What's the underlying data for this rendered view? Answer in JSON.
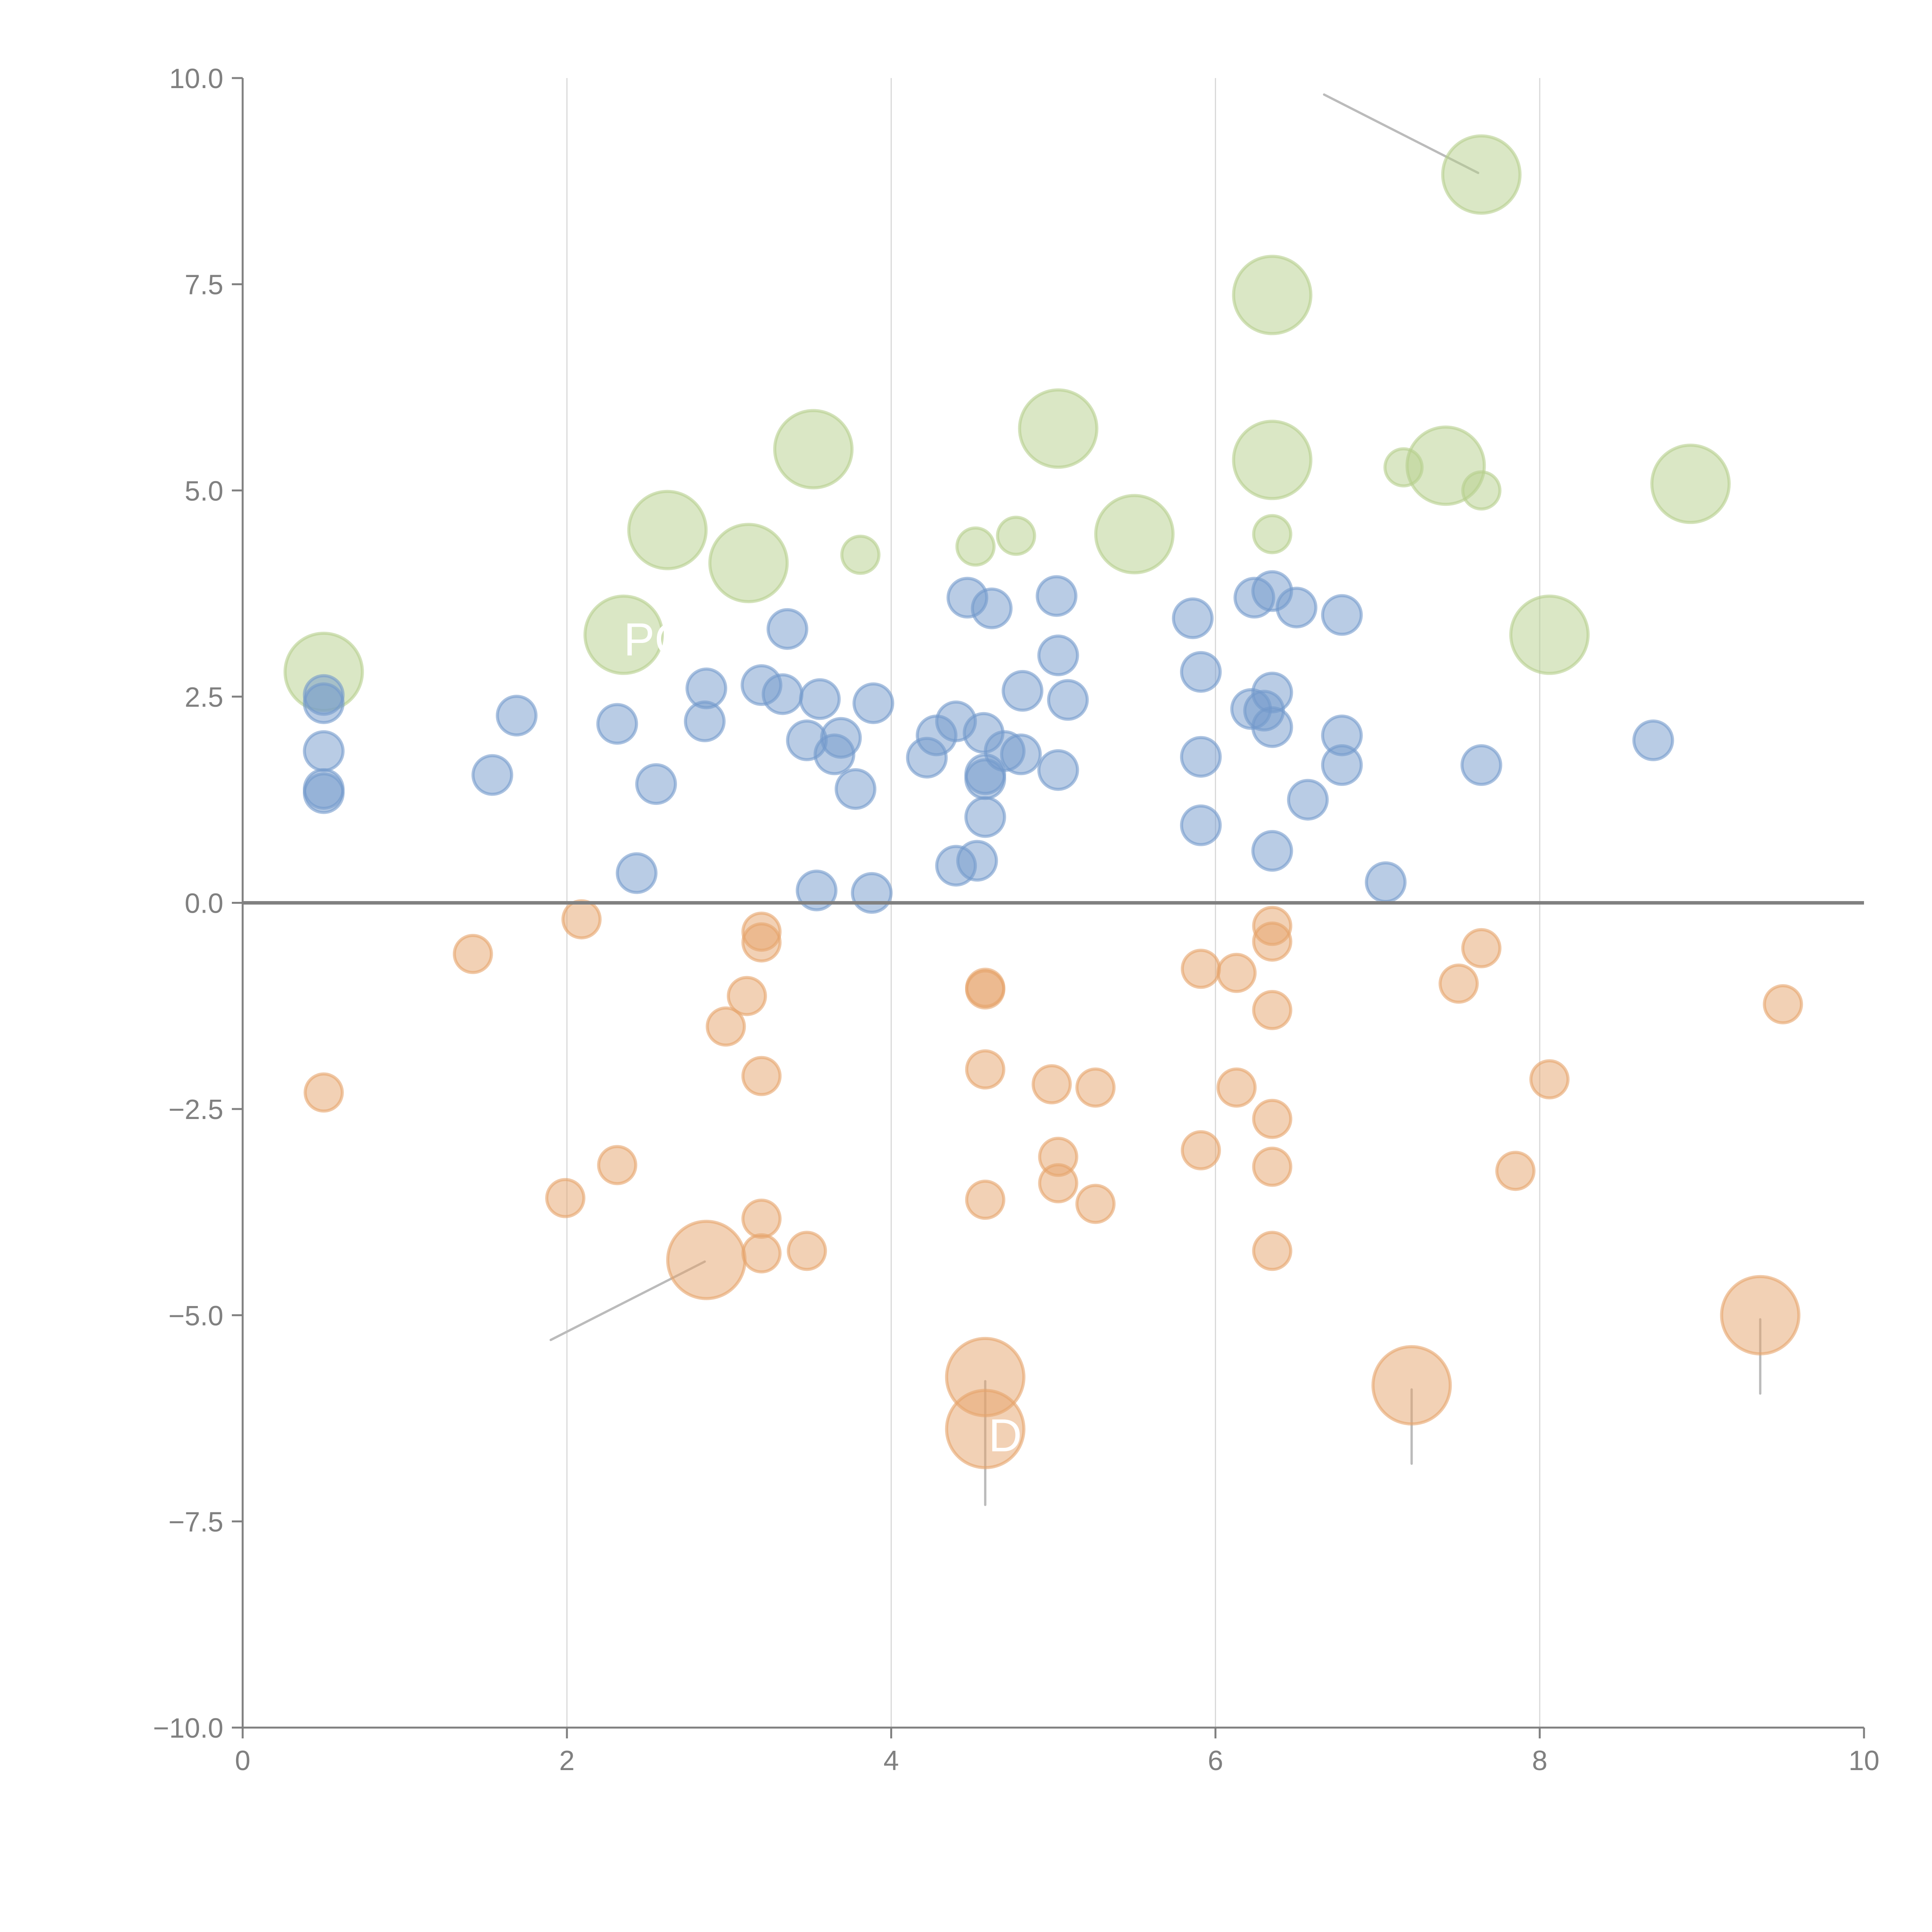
{
  "chart_data": {
    "type": "scatter",
    "title": "",
    "xlabel": "",
    "ylabel": "",
    "xlim": [
      0,
      10
    ],
    "ylim": [
      -10,
      10
    ],
    "grid": "vertical",
    "legend": "none",
    "x_ticks": [
      "0",
      "2",
      "4",
      "6",
      "8",
      "10"
    ],
    "x_tick_values": [
      0,
      2,
      4,
      6,
      8,
      10
    ],
    "y_ticks": [
      "10.0",
      "7.5",
      "5.0",
      "2.5",
      "0.0",
      "−2.5",
      "−5.0",
      "−7.5",
      "−10.0"
    ],
    "y_tick_values": [
      10,
      7.5,
      5,
      2.5,
      0,
      -2.5,
      -5,
      -7.5,
      -10
    ],
    "series": [
      {
        "name": "green",
        "color": "#b5cf8c",
        "points": [
          {
            "x": 0.5,
            "y": 2.8,
            "size": "large"
          },
          {
            "x": 2.35,
            "y": 3.25,
            "size": "large"
          },
          {
            "x": 2.62,
            "y": 4.52,
            "size": "large"
          },
          {
            "x": 3.12,
            "y": 4.12,
            "size": "large"
          },
          {
            "x": 3.52,
            "y": 5.5,
            "size": "large"
          },
          {
            "x": 3.81,
            "y": 4.22,
            "size": "small"
          },
          {
            "x": 4.52,
            "y": 4.32,
            "size": "small"
          },
          {
            "x": 4.77,
            "y": 4.45,
            "size": "small"
          },
          {
            "x": 5.03,
            "y": 5.75,
            "size": "large"
          },
          {
            "x": 5.5,
            "y": 4.47,
            "size": "large"
          },
          {
            "x": 6.35,
            "y": 7.37,
            "size": "large"
          },
          {
            "x": 6.35,
            "y": 5.37,
            "size": "large"
          },
          {
            "x": 6.35,
            "y": 4.47,
            "size": "small"
          },
          {
            "x": 7.16,
            "y": 5.28,
            "size": "small"
          },
          {
            "x": 7.42,
            "y": 5.3,
            "size": "large"
          },
          {
            "x": 7.64,
            "y": 5.0,
            "size": "small"
          },
          {
            "x": 7.64,
            "y": 8.83,
            "size": "large"
          },
          {
            "x": 8.06,
            "y": 3.25,
            "size": "large"
          },
          {
            "x": 8.93,
            "y": 5.08,
            "size": "large"
          }
        ]
      },
      {
        "name": "blue",
        "color": "#7399cc",
        "points": [
          {
            "x": 0.5,
            "y": 2.52
          },
          {
            "x": 0.5,
            "y": 2.42
          },
          {
            "x": 0.5,
            "y": 1.84
          },
          {
            "x": 0.5,
            "y": 1.38
          },
          {
            "x": 0.5,
            "y": 1.33
          },
          {
            "x": 1.54,
            "y": 1.55
          },
          {
            "x": 1.69,
            "y": 2.27
          },
          {
            "x": 2.31,
            "y": 2.17
          },
          {
            "x": 2.43,
            "y": 0.36
          },
          {
            "x": 2.55,
            "y": 1.44
          },
          {
            "x": 2.85,
            "y": 2.2
          },
          {
            "x": 2.86,
            "y": 2.6
          },
          {
            "x": 3.2,
            "y": 2.64
          },
          {
            "x": 3.33,
            "y": 2.53
          },
          {
            "x": 3.36,
            "y": 3.32
          },
          {
            "x": 3.48,
            "y": 1.97
          },
          {
            "x": 3.54,
            "y": 0.15
          },
          {
            "x": 3.56,
            "y": 2.47
          },
          {
            "x": 3.65,
            "y": 1.8
          },
          {
            "x": 3.69,
            "y": 2.0
          },
          {
            "x": 3.78,
            "y": 1.38
          },
          {
            "x": 3.88,
            "y": 0.12
          },
          {
            "x": 3.89,
            "y": 2.42
          },
          {
            "x": 4.22,
            "y": 1.76
          },
          {
            "x": 4.28,
            "y": 2.03
          },
          {
            "x": 4.4,
            "y": 0.45
          },
          {
            "x": 4.4,
            "y": 2.2
          },
          {
            "x": 4.47,
            "y": 3.7
          },
          {
            "x": 4.53,
            "y": 0.51
          },
          {
            "x": 4.57,
            "y": 2.06
          },
          {
            "x": 4.58,
            "y": 1.56
          },
          {
            "x": 4.58,
            "y": 1.5
          },
          {
            "x": 4.58,
            "y": 1.04
          },
          {
            "x": 4.62,
            "y": 3.57
          },
          {
            "x": 4.7,
            "y": 1.84
          },
          {
            "x": 4.8,
            "y": 1.8
          },
          {
            "x": 4.81,
            "y": 2.57
          },
          {
            "x": 5.02,
            "y": 3.72
          },
          {
            "x": 5.03,
            "y": 3.0
          },
          {
            "x": 5.03,
            "y": 1.61
          },
          {
            "x": 5.09,
            "y": 2.46
          },
          {
            "x": 5.86,
            "y": 3.45
          },
          {
            "x": 5.91,
            "y": 2.8
          },
          {
            "x": 5.91,
            "y": 1.77
          },
          {
            "x": 5.91,
            "y": 0.94
          },
          {
            "x": 6.22,
            "y": 2.35
          },
          {
            "x": 6.24,
            "y": 3.7
          },
          {
            "x": 6.3,
            "y": 2.33
          },
          {
            "x": 6.35,
            "y": 3.78
          },
          {
            "x": 6.35,
            "y": 2.55
          },
          {
            "x": 6.35,
            "y": 2.13
          },
          {
            "x": 6.35,
            "y": 0.63
          },
          {
            "x": 6.5,
            "y": 3.58
          },
          {
            "x": 6.57,
            "y": 1.25
          },
          {
            "x": 6.78,
            "y": 3.49
          },
          {
            "x": 6.78,
            "y": 2.03
          },
          {
            "x": 6.78,
            "y": 1.67
          },
          {
            "x": 7.05,
            "y": 0.25
          },
          {
            "x": 7.64,
            "y": 1.67
          },
          {
            "x": 8.7,
            "y": 1.97
          }
        ]
      },
      {
        "name": "orange",
        "color": "#e6a36b",
        "points": [
          {
            "x": 0.5,
            "y": -2.3,
            "size": "small"
          },
          {
            "x": 1.42,
            "y": -0.62,
            "size": "small"
          },
          {
            "x": 1.99,
            "y": -3.58,
            "size": "small"
          },
          {
            "x": 2.09,
            "y": -0.2,
            "size": "small"
          },
          {
            "x": 2.31,
            "y": -3.18,
            "size": "small"
          },
          {
            "x": 2.86,
            "y": -4.33,
            "size": "large"
          },
          {
            "x": 2.98,
            "y": -1.5,
            "size": "small"
          },
          {
            "x": 3.11,
            "y": -1.13,
            "size": "small"
          },
          {
            "x": 3.2,
            "y": -0.35,
            "size": "small"
          },
          {
            "x": 3.2,
            "y": -0.48,
            "size": "small"
          },
          {
            "x": 3.2,
            "y": -2.1,
            "size": "small"
          },
          {
            "x": 3.2,
            "y": -3.83,
            "size": "small"
          },
          {
            "x": 3.2,
            "y": -4.25,
            "size": "small"
          },
          {
            "x": 3.48,
            "y": -4.22,
            "size": "small"
          },
          {
            "x": 4.58,
            "y": -1.03,
            "size": "small"
          },
          {
            "x": 4.58,
            "y": -1.05,
            "size": "small"
          },
          {
            "x": 4.58,
            "y": -2.02,
            "size": "small"
          },
          {
            "x": 4.58,
            "y": -3.6,
            "size": "small"
          },
          {
            "x": 4.58,
            "y": -5.75,
            "size": "large"
          },
          {
            "x": 4.58,
            "y": -6.38,
            "size": "large"
          },
          {
            "x": 4.99,
            "y": -2.2,
            "size": "small"
          },
          {
            "x": 5.03,
            "y": -3.08,
            "size": "small"
          },
          {
            "x": 5.03,
            "y": -3.4,
            "size": "small"
          },
          {
            "x": 5.26,
            "y": -2.24,
            "size": "small"
          },
          {
            "x": 5.26,
            "y": -3.65,
            "size": "small"
          },
          {
            "x": 5.91,
            "y": -0.8,
            "size": "small"
          },
          {
            "x": 5.91,
            "y": -3.0,
            "size": "small"
          },
          {
            "x": 6.13,
            "y": -0.85,
            "size": "small"
          },
          {
            "x": 6.13,
            "y": -2.24,
            "size": "small"
          },
          {
            "x": 6.35,
            "y": -0.28,
            "size": "small"
          },
          {
            "x": 6.35,
            "y": -0.47,
            "size": "small"
          },
          {
            "x": 6.35,
            "y": -1.3,
            "size": "small"
          },
          {
            "x": 6.35,
            "y": -2.62,
            "size": "small"
          },
          {
            "x": 6.35,
            "y": -3.2,
            "size": "small"
          },
          {
            "x": 6.35,
            "y": -4.22,
            "size": "small"
          },
          {
            "x": 7.21,
            "y": -5.85,
            "size": "large"
          },
          {
            "x": 7.5,
            "y": -0.98,
            "size": "small"
          },
          {
            "x": 7.64,
            "y": -0.55,
            "size": "small"
          },
          {
            "x": 7.85,
            "y": -3.25,
            "size": "small"
          },
          {
            "x": 8.06,
            "y": -2.14,
            "size": "small"
          },
          {
            "x": 9.36,
            "y": -5.0,
            "size": "large"
          },
          {
            "x": 9.5,
            "y": -1.23,
            "size": "small"
          }
        ]
      }
    ],
    "annotations": [
      {
        "text": "POW",
        "x": 2.35,
        "y": 3.0,
        "color": "#ffffff"
      },
      {
        "text": "D",
        "x": 4.6,
        "y": -6.65,
        "color": "#ffffff"
      }
    ],
    "leader_lines": [
      {
        "from": [
          6.67,
          9.8
        ],
        "to": [
          7.62,
          8.85
        ],
        "color": "#bbbbbb"
      },
      {
        "from": [
          1.9,
          -5.3
        ],
        "to": [
          2.85,
          -4.35
        ],
        "color": "#bbbbbb"
      },
      {
        "from": [
          4.58,
          -5.8
        ],
        "to": [
          4.58,
          -7.3
        ],
        "color": "#bbbbbb"
      },
      {
        "from": [
          7.21,
          -5.9
        ],
        "to": [
          7.21,
          -6.8
        ],
        "color": "#bbbbbb"
      },
      {
        "from": [
          9.36,
          -5.05
        ],
        "to": [
          9.36,
          -5.95
        ],
        "color": "#bbbbbb"
      }
    ]
  }
}
